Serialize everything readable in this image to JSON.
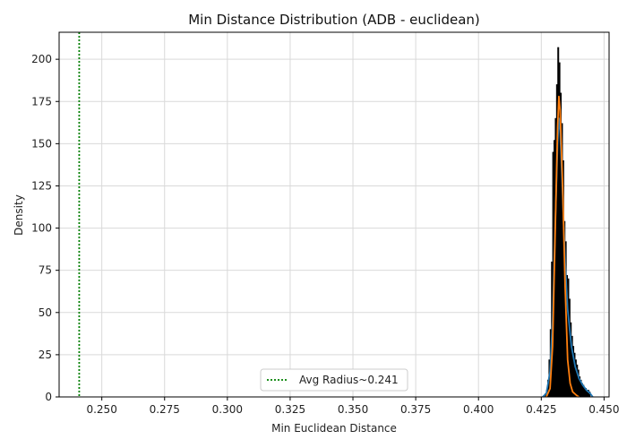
{
  "chart_data": {
    "type": "histogram",
    "title": "Min Distance Distribution (ADB - euclidean)",
    "xlabel": "Min Euclidean Distance",
    "ylabel": "Density",
    "xlim": [
      0.233,
      0.452
    ],
    "ylim": [
      0,
      216
    ],
    "xticks": [
      0.25,
      0.275,
      0.3,
      0.325,
      0.35,
      0.375,
      0.4,
      0.425,
      0.45
    ],
    "xtick_labels": [
      "0.250",
      "0.275",
      "0.300",
      "0.325",
      "0.350",
      "0.375",
      "0.400",
      "0.425",
      "0.450"
    ],
    "yticks": [
      0,
      25,
      50,
      75,
      100,
      125,
      150,
      175,
      200
    ],
    "ytick_labels": [
      "0",
      "25",
      "50",
      "75",
      "100",
      "125",
      "150",
      "175",
      "200"
    ],
    "grid": true,
    "histogram": {
      "bin_edges": [
        0.4265,
        0.427,
        0.4275,
        0.428,
        0.4285,
        0.429,
        0.4295,
        0.43,
        0.4305,
        0.431,
        0.4315,
        0.432,
        0.4325,
        0.433,
        0.4335,
        0.434,
        0.4345,
        0.435,
        0.4355,
        0.436,
        0.4365,
        0.437,
        0.4375,
        0.438,
        0.4385,
        0.439,
        0.4395,
        0.44,
        0.4405,
        0.441,
        0.4415,
        0.442,
        0.4425,
        0.443,
        0.4435,
        0.444,
        0.4445
      ],
      "densities": [
        2,
        4,
        10,
        22,
        40,
        80,
        145,
        152,
        165,
        185,
        207,
        198,
        180,
        162,
        140,
        104,
        92,
        72,
        70,
        58,
        44,
        36,
        30,
        26,
        22,
        19,
        16,
        12,
        10,
        8,
        7,
        5,
        5,
        4,
        4,
        3
      ],
      "fill_color": "#000000",
      "edge_color": "#000000"
    },
    "series": [
      {
        "kind": "kde",
        "color": "#1f77b4",
        "x": [
          0.4255,
          0.427,
          0.4285,
          0.4295,
          0.4305,
          0.4315,
          0.432,
          0.4325,
          0.4335,
          0.4345,
          0.4355,
          0.437,
          0.4385,
          0.44,
          0.4415,
          0.443,
          0.4445,
          0.4455
        ],
        "y": [
          0,
          2,
          15,
          45,
          100,
          150,
          165,
          158,
          120,
          80,
          52,
          30,
          18,
          11,
          7,
          4,
          2,
          0
        ]
      },
      {
        "kind": "normal-fit",
        "color": "#ff7f0e",
        "x": [
          0.427,
          0.4285,
          0.4295,
          0.4305,
          0.4315,
          0.432,
          0.4325,
          0.4335,
          0.4345,
          0.4355,
          0.4365,
          0.4375,
          0.439,
          0.44
        ],
        "y": [
          0,
          5,
          30,
          95,
          160,
          178,
          170,
          125,
          65,
          22,
          8,
          3,
          1,
          0
        ]
      }
    ],
    "vlines": [
      {
        "x": 0.241,
        "color": "#008000",
        "style": "dotted",
        "label": "Avg Radius~0.241"
      }
    ],
    "legend": {
      "placement": "lower-center",
      "entries": [
        {
          "label": "Avg Radius~0.241",
          "color": "#008000",
          "style": "dotted"
        }
      ]
    }
  }
}
